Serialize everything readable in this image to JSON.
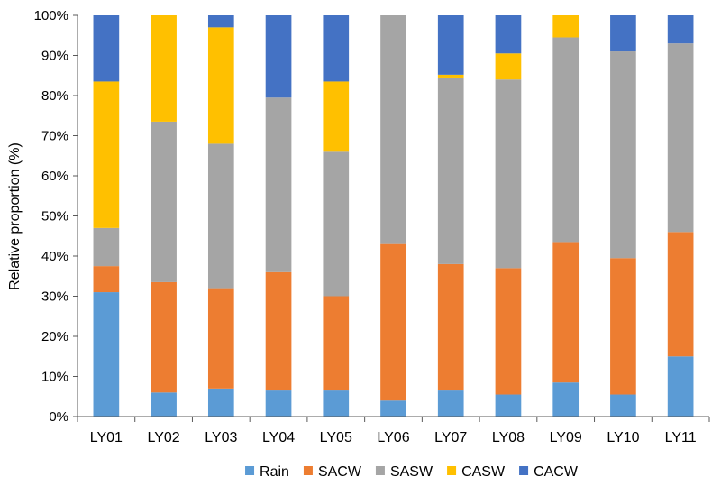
{
  "chart_data": {
    "type": "bar",
    "stacked": true,
    "title": "",
    "xlabel": "",
    "ylabel": "Relative proportion (%)",
    "ylim": [
      0,
      100
    ],
    "yticks": [
      "0%",
      "10%",
      "20%",
      "30%",
      "40%",
      "50%",
      "60%",
      "70%",
      "80%",
      "90%",
      "100%"
    ],
    "categories": [
      "LY01",
      "LY02",
      "LY03",
      "LY04",
      "LY05",
      "LY06",
      "LY07",
      "LY08",
      "LY09",
      "LY10",
      "LY11"
    ],
    "series": [
      {
        "name": "Rain",
        "color": "#5B9BD5",
        "values": [
          31,
          6,
          7,
          6.5,
          6.5,
          4,
          6.5,
          5.5,
          8.5,
          5.5,
          15
        ]
      },
      {
        "name": "SACW",
        "color": "#ED7D31",
        "values": [
          6.5,
          27.5,
          25,
          29.5,
          23.5,
          39,
          31.5,
          31.5,
          35,
          34,
          31
        ]
      },
      {
        "name": "SASW",
        "color": "#A5A5A5",
        "values": [
          9.5,
          40,
          36,
          43.5,
          36,
          57,
          46.5,
          47,
          51,
          51.5,
          47
        ]
      },
      {
        "name": "CASW",
        "color": "#FFC000",
        "values": [
          36.5,
          26.5,
          29,
          0,
          17.5,
          0,
          0.7,
          6.5,
          5.5,
          0,
          0
        ]
      },
      {
        "name": "CACW",
        "color": "#4472C4",
        "values": [
          16.5,
          0,
          3,
          20.5,
          16.5,
          0,
          14.8,
          9.5,
          0,
          9,
          7
        ]
      }
    ],
    "legend_position": "bottom"
  },
  "axis_color": "#595959"
}
